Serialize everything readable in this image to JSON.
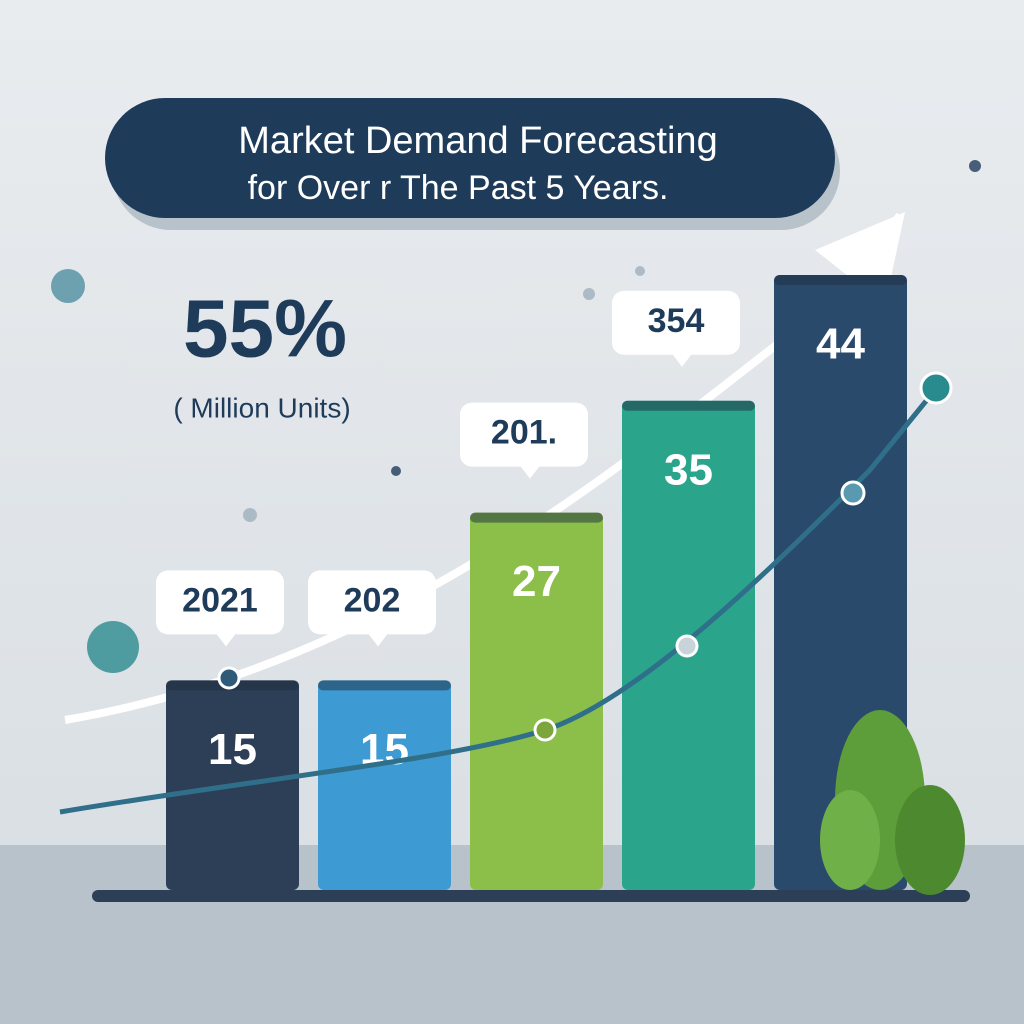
{
  "chart_data": {
    "type": "bar",
    "title": "Market Demand Forecasting",
    "subtitle": "for Over r The Past 5 Years.",
    "annotations": [
      "55%",
      "( Million Units)"
    ],
    "categories": [
      "2021",
      "202",
      "201.",
      "354",
      null
    ],
    "values": [
      15,
      15,
      27,
      35,
      44
    ],
    "colors": [
      "#2c3f57",
      "#3d9ad3",
      "#8bbf4a",
      "#2aa58c",
      "#2a4a6c"
    ]
  }
}
